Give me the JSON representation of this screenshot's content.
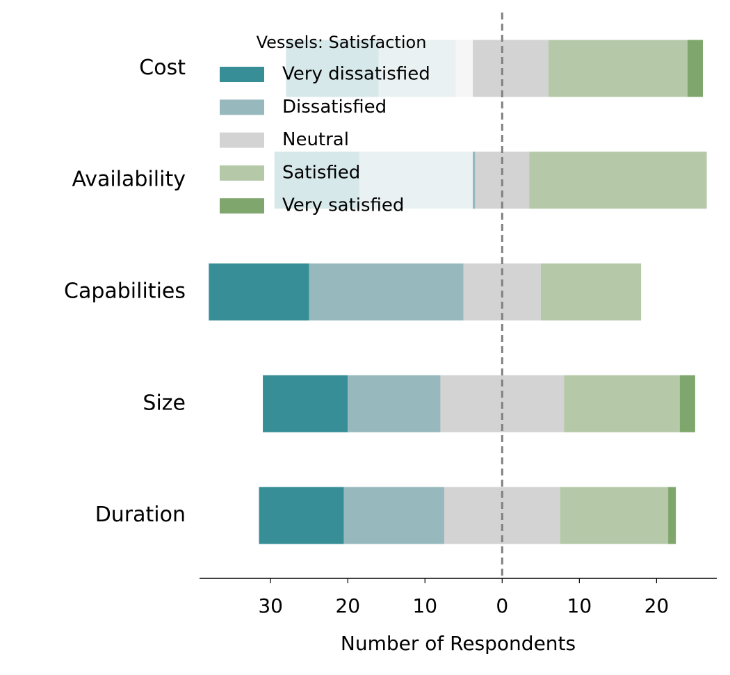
{
  "chart_data": {
    "type": "diverging-bar",
    "x_label": "Number of Respondents",
    "legend_title": "Vessels: Satisfaction",
    "legend": "upper left",
    "categories": [
      "Cost",
      "Availability",
      "Capabilities",
      "Size",
      "Duration"
    ],
    "neutral_series": 2,
    "series": [
      {
        "name": "Very dissatisfied",
        "color": "#388e96",
        "values": [
          12,
          11,
          13,
          11,
          11
        ]
      },
      {
        "name": "Dissatisfied",
        "color": "#97b9be",
        "values": [
          10,
          15,
          20,
          12,
          13
        ]
      },
      {
        "name": "Neutral",
        "color": "#d3d3d3",
        "values": [
          12,
          7,
          10,
          16,
          15
        ]
      },
      {
        "name": "Satisfied",
        "color": "#b5c9a9",
        "values": [
          18,
          23,
          13,
          15,
          14
        ]
      },
      {
        "name": "Very satisfied",
        "color": "#7fa76d",
        "values": [
          2,
          0,
          0,
          2,
          1
        ]
      }
    ],
    "xlim": [
      -39.2,
      27.8
    ],
    "xticks": [
      {
        "value": -30,
        "label": "30"
      },
      {
        "value": -20,
        "label": "20"
      },
      {
        "value": -10,
        "label": "10"
      },
      0,
      10,
      20
    ]
  }
}
